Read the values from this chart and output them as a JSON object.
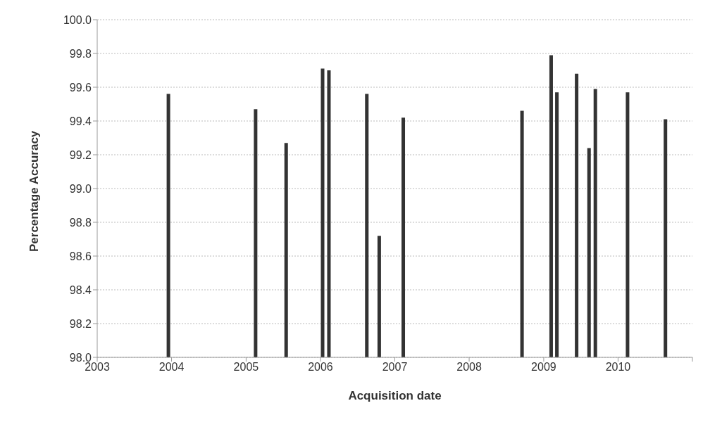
{
  "chart_data": {
    "type": "bar",
    "xlabel": "Acquisition date",
    "ylabel": "Percentage Accuracy",
    "x": [
      "2003-12-15",
      "2005-02-15",
      "2005-07-15",
      "2006-01-10",
      "2006-02-10",
      "2006-08-15",
      "2006-10-15",
      "2007-02-10",
      "2008-09-15",
      "2009-02-05",
      "2009-03-05",
      "2009-06-10",
      "2009-08-10",
      "2009-09-10",
      "2010-02-15",
      "2010-08-20"
    ],
    "values": [
      99.56,
      99.47,
      99.27,
      99.71,
      99.7,
      99.56,
      98.72,
      99.42,
      99.46,
      99.79,
      99.57,
      99.68,
      99.24,
      99.59,
      99.57,
      99.41
    ],
    "color": "#333333",
    "xlim": [
      "2003",
      "2011"
    ],
    "xticks": [
      "2003",
      "2004",
      "2005",
      "2006",
      "2007",
      "2008",
      "2009",
      "2010",
      {
        "value": "2011",
        "label": null
      }
    ],
    "ylim": [
      98,
      100
    ],
    "yticks": [
      {
        "value": 98,
        "label": "98.0"
      },
      {
        "value": 98.2,
        "label": "98.2"
      },
      {
        "value": 98.4,
        "label": "98.4"
      },
      {
        "value": 98.6,
        "label": "98.6"
      },
      {
        "value": 98.8,
        "label": "98.8"
      },
      {
        "value": 99,
        "label": "99.0"
      },
      {
        "value": 99.2,
        "label": "99.2"
      },
      {
        "value": 99.4,
        "label": "99.4"
      },
      {
        "value": 99.6,
        "label": "99.6"
      },
      {
        "value": 99.8,
        "label": "99.8"
      },
      {
        "value": 100,
        "label": "100.0"
      }
    ],
    "grid": "y"
  }
}
